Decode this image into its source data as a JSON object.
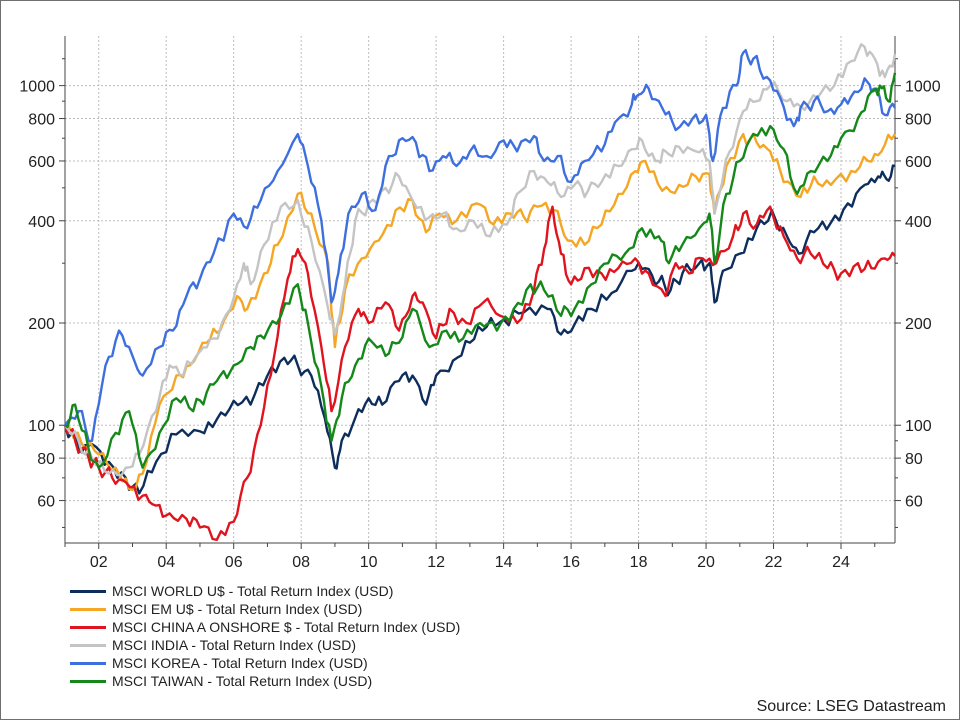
{
  "source": "Source: LSEG Datastream",
  "chart_data": {
    "type": "line",
    "title": "",
    "xlabel": "",
    "ylabel": "",
    "y_scale": "log",
    "xlim": [
      2001.0,
      2025.6
    ],
    "ylim": [
      45,
      1400
    ],
    "grid": true,
    "legend_position": "bottom-left",
    "x_ticks": [
      2002,
      2004,
      2006,
      2008,
      2010,
      2012,
      2014,
      2016,
      2018,
      2020,
      2022,
      2024
    ],
    "x_tick_labels": [
      "02",
      "04",
      "06",
      "08",
      "10",
      "12",
      "14",
      "16",
      "18",
      "20",
      "22",
      "24"
    ],
    "y_ticks": [
      60,
      80,
      100,
      200,
      400,
      600,
      800,
      1000
    ],
    "y_tick_labels": [
      "60",
      "80",
      "100",
      "200",
      "400",
      "600",
      "800",
      "1000"
    ],
    "series": [
      {
        "name": "MSCI WORLD U$ - Total Return Index (USD)",
        "color": "#0d2d5c",
        "x": [
          2001.0,
          2001.4,
          2001.8,
          2002.3,
          2002.8,
          2003.2,
          2003.7,
          2004.3,
          2005.0,
          2005.5,
          2006.0,
          2006.5,
          2007.0,
          2007.5,
          2007.9,
          2008.3,
          2008.7,
          2009.0,
          2009.2,
          2009.6,
          2010.0,
          2010.4,
          2010.9,
          2011.3,
          2011.7,
          2012.0,
          2012.5,
          2013.0,
          2013.5,
          2014.0,
          2014.6,
          2015.3,
          2015.7,
          2016.1,
          2016.6,
          2017.2,
          2017.8,
          2018.2,
          2018.6,
          2018.95,
          2019.3,
          2019.8,
          2020.1,
          2020.25,
          2020.5,
          2021.0,
          2021.5,
          2021.95,
          2022.4,
          2022.75,
          2023.2,
          2023.7,
          2024.2,
          2024.7,
          2025.1,
          2025.35,
          2025.6
        ],
        "values": [
          100,
          85,
          88,
          78,
          70,
          63,
          78,
          94,
          96,
          104,
          118,
          115,
          140,
          158,
          150,
          140,
          105,
          75,
          90,
          105,
          120,
          115,
          135,
          140,
          115,
          140,
          155,
          175,
          195,
          205,
          215,
          220,
          185,
          198,
          220,
          245,
          285,
          290,
          265,
          250,
          280,
          300,
          300,
          230,
          285,
          320,
          380,
          430,
          360,
          320,
          370,
          395,
          450,
          510,
          540,
          530,
          580
        ]
      },
      {
        "name": "MSCI EM U$ - Total Return Index (USD)",
        "color": "#f5a623",
        "x": [
          2001.0,
          2001.5,
          2002.0,
          2002.5,
          2002.9,
          2003.3,
          2003.8,
          2004.3,
          2004.7,
          2005.2,
          2005.6,
          2006.1,
          2006.4,
          2006.9,
          2007.3,
          2007.9,
          2008.3,
          2008.8,
          2009.0,
          2009.3,
          2009.8,
          2010.3,
          2010.8,
          2011.3,
          2011.7,
          2012.1,
          2012.6,
          2013.2,
          2013.7,
          2014.2,
          2014.6,
          2015.0,
          2015.5,
          2015.9,
          2016.4,
          2016.9,
          2017.4,
          2017.9,
          2018.2,
          2018.7,
          2019.2,
          2019.7,
          2020.1,
          2020.25,
          2020.6,
          2021.1,
          2021.5,
          2021.9,
          2022.3,
          2022.8,
          2023.2,
          2023.7,
          2024.3,
          2024.8,
          2025.2,
          2025.6
        ],
        "values": [
          100,
          88,
          82,
          75,
          65,
          72,
          115,
          140,
          150,
          175,
          190,
          240,
          220,
          280,
          340,
          480,
          420,
          300,
          170,
          250,
          310,
          350,
          430,
          460,
          370,
          420,
          400,
          450,
          390,
          420,
          410,
          440,
          430,
          350,
          340,
          390,
          480,
          560,
          600,
          490,
          510,
          540,
          550,
          420,
          580,
          720,
          680,
          640,
          520,
          470,
          540,
          510,
          560,
          600,
          640,
          720
        ]
      },
      {
        "name": "MSCI CHINA A ONSHORE $ - Total Return Index (USD)",
        "color": "#e0141e",
        "x": [
          2001.0,
          2001.3,
          2001.7,
          2002.0,
          2002.4,
          2002.8,
          2003.3,
          2003.7,
          2004.1,
          2004.6,
          2005.0,
          2005.5,
          2006.0,
          2006.4,
          2006.8,
          2007.2,
          2007.6,
          2007.9,
          2008.2,
          2008.6,
          2008.9,
          2009.3,
          2009.7,
          2010.0,
          2010.5,
          2010.9,
          2011.3,
          2011.6,
          2012.0,
          2012.4,
          2012.9,
          2013.4,
          2013.9,
          2014.4,
          2014.9,
          2015.2,
          2015.45,
          2015.7,
          2016.0,
          2016.4,
          2016.9,
          2017.4,
          2017.9,
          2018.3,
          2018.8,
          2019.1,
          2019.5,
          2019.9,
          2020.3,
          2020.8,
          2021.1,
          2021.5,
          2021.9,
          2022.3,
          2022.7,
          2023.1,
          2023.6,
          2024.0,
          2024.5,
          2024.9,
          2025.3,
          2025.6
        ],
        "values": [
          100,
          90,
          80,
          75,
          70,
          68,
          62,
          58,
          55,
          53,
          50,
          46,
          52,
          70,
          100,
          160,
          270,
          330,
          280,
          170,
          110,
          170,
          220,
          200,
          230,
          190,
          240,
          230,
          180,
          220,
          200,
          230,
          210,
          200,
          250,
          330,
          440,
          320,
          260,
          290,
          280,
          290,
          310,
          280,
          240,
          300,
          280,
          310,
          300,
          360,
          420,
          390,
          440,
          360,
          310,
          320,
          290,
          280,
          300,
          290,
          310,
          315
        ]
      },
      {
        "name": "MSCI INDIA - Total Return Index (USD)",
        "color": "#c4c4c4",
        "x": [
          2001.0,
          2001.4,
          2001.8,
          2002.3,
          2002.8,
          2003.2,
          2003.7,
          2004.1,
          2004.5,
          2005.0,
          2005.4,
          2005.9,
          2006.3,
          2006.5,
          2006.9,
          2007.4,
          2007.9,
          2008.3,
          2008.8,
          2009.0,
          2009.3,
          2009.6,
          2010.0,
          2010.5,
          2010.9,
          2011.3,
          2011.8,
          2012.2,
          2012.6,
          2013.1,
          2013.6,
          2014.1,
          2014.4,
          2014.9,
          2015.3,
          2015.7,
          2016.1,
          2016.5,
          2016.9,
          2017.4,
          2017.8,
          2018.1,
          2018.5,
          2018.8,
          2019.2,
          2019.7,
          2020.1,
          2020.25,
          2020.7,
          2021.1,
          2021.5,
          2021.9,
          2022.4,
          2022.8,
          2023.3,
          2023.8,
          2024.3,
          2024.7,
          2025.0,
          2025.3,
          2025.6
        ],
        "values": [
          100,
          90,
          80,
          72,
          75,
          82,
          110,
          150,
          140,
          165,
          180,
          220,
          300,
          260,
          340,
          440,
          460,
          350,
          220,
          185,
          260,
          400,
          450,
          500,
          540,
          460,
          410,
          420,
          380,
          400,
          360,
          390,
          480,
          560,
          520,
          470,
          510,
          490,
          520,
          580,
          650,
          690,
          600,
          640,
          660,
          640,
          600,
          420,
          640,
          840,
          900,
          1000,
          900,
          870,
          920,
          1000,
          1180,
          1300,
          1200,
          1060,
          1240
        ]
      },
      {
        "name": "MSCI KOREA - Total Return Index (USD)",
        "color": "#3e6fdf",
        "x": [
          2001.0,
          2001.4,
          2001.8,
          2002.2,
          2002.6,
          2003.0,
          2003.3,
          2003.8,
          2004.2,
          2004.6,
          2005.0,
          2005.4,
          2006.0,
          2006.4,
          2006.8,
          2007.3,
          2007.9,
          2008.2,
          2008.6,
          2008.9,
          2009.1,
          2009.4,
          2009.8,
          2010.2,
          2010.6,
          2011.0,
          2011.4,
          2011.8,
          2012.2,
          2012.6,
          2013.0,
          2013.5,
          2014.0,
          2014.4,
          2014.9,
          2015.2,
          2015.6,
          2016.0,
          2016.4,
          2016.9,
          2017.3,
          2017.8,
          2018.0,
          2018.3,
          2018.7,
          2019.1,
          2019.6,
          2020.0,
          2020.2,
          2020.5,
          2020.9,
          2021.1,
          2021.4,
          2021.8,
          2022.2,
          2022.6,
          2022.8,
          2023.2,
          2023.6,
          2024.0,
          2024.4,
          2024.8,
          2025.0,
          2025.3,
          2025.6
        ],
        "values": [
          100,
          110,
          90,
          150,
          190,
          160,
          140,
          170,
          190,
          240,
          270,
          320,
          420,
          380,
          460,
          560,
          720,
          580,
          400,
          230,
          280,
          420,
          480,
          430,
          620,
          700,
          680,
          560,
          620,
          580,
          640,
          620,
          690,
          640,
          710,
          600,
          620,
          520,
          600,
          640,
          780,
          880,
          940,
          980,
          860,
          740,
          800,
          820,
          600,
          860,
          1000,
          1250,
          1200,
          1060,
          920,
          760,
          860,
          900,
          840,
          880,
          960,
          1020,
          980,
          820,
          860
        ]
      },
      {
        "name": "MSCI TAIWAN - Total Return Index (USD)",
        "color": "#15881a",
        "x": [
          2001.0,
          2001.3,
          2001.7,
          2002.0,
          2002.5,
          2002.9,
          2003.3,
          2003.8,
          2004.3,
          2004.8,
          2005.2,
          2005.6,
          2006.0,
          2006.5,
          2006.9,
          2007.4,
          2007.9,
          2008.2,
          2008.6,
          2008.9,
          2009.2,
          2009.6,
          2010.0,
          2010.5,
          2010.9,
          2011.3,
          2011.8,
          2012.3,
          2012.8,
          2013.3,
          2013.8,
          2014.3,
          2014.8,
          2015.2,
          2015.7,
          2016.1,
          2016.6,
          2017.1,
          2017.6,
          2018.1,
          2018.6,
          2018.9,
          2019.3,
          2019.8,
          2020.1,
          2020.25,
          2020.6,
          2021.0,
          2021.4,
          2021.9,
          2022.3,
          2022.7,
          2023.1,
          2023.6,
          2024.0,
          2024.5,
          2024.9,
          2025.15,
          2025.4,
          2025.6
        ],
        "values": [
          100,
          115,
          85,
          75,
          95,
          110,
          75,
          95,
          120,
          110,
          125,
          140,
          150,
          170,
          180,
          210,
          260,
          200,
          130,
          90,
          120,
          150,
          180,
          160,
          175,
          220,
          170,
          190,
          180,
          200,
          190,
          220,
          260,
          250,
          210,
          220,
          260,
          300,
          320,
          380,
          360,
          300,
          340,
          380,
          420,
          300,
          480,
          600,
          720,
          760,
          650,
          480,
          560,
          600,
          700,
          800,
          960,
          1000,
          900,
          1090
        ]
      }
    ]
  }
}
